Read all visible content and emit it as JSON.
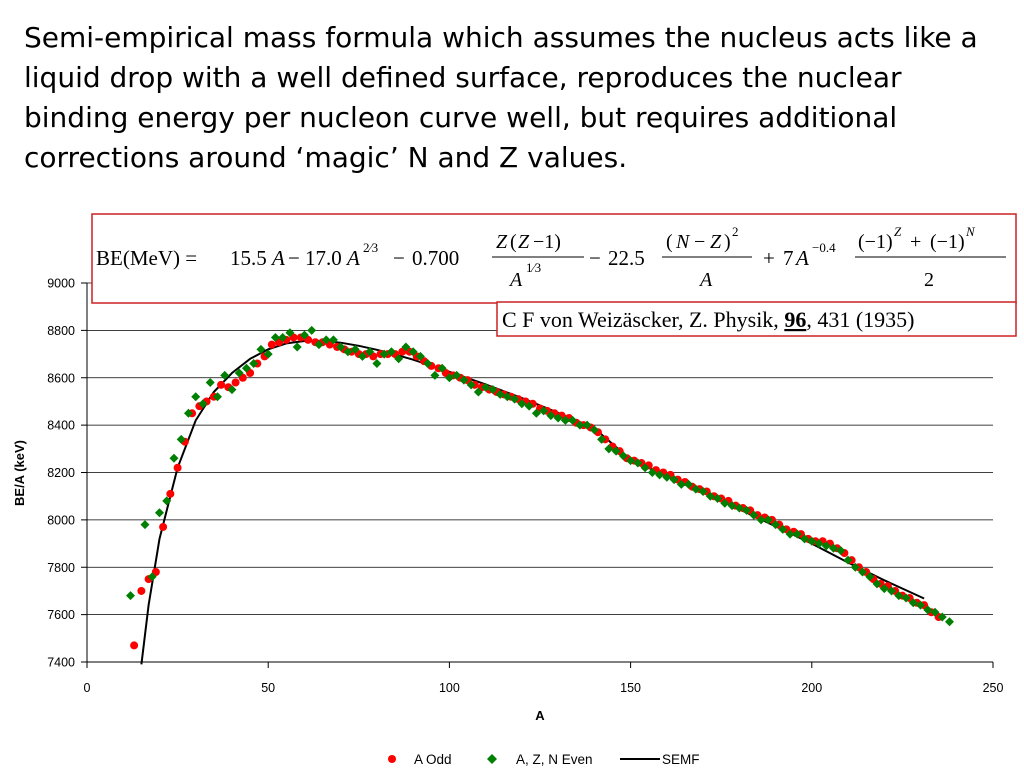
{
  "intro_text": "Semi-empirical mass formula which assumes the nucleus acts like a liquid drop with a well defined surface, reproduces the nuclear binding energy per nucleon curve well, but requires additional corrections around ‘magic’ N and Z values.",
  "formula": {
    "lhs": "BE(MeV) = ",
    "term1": "15.5",
    "term2": "17.0",
    "term3": "0.700",
    "term4": "22.5",
    "term5": "7"
  },
  "reference": {
    "prefix": "C F von Weizäscker, Z. Physik, ",
    "volume": "96",
    "suffix": ", 431 (1935)"
  },
  "colors": {
    "odd": "#ff0000",
    "even": "#008000",
    "semf": "#000000",
    "box_border": "#cc2222"
  },
  "chart_data": {
    "type": "scatter",
    "title": "",
    "xlabel": "A",
    "ylabel": "BE/A (keV)",
    "xlim": [
      0,
      250
    ],
    "ylim": [
      7400,
      9000
    ],
    "x_ticks": [
      0,
      50,
      100,
      150,
      200,
      250
    ],
    "y_ticks": [
      7400,
      7600,
      7800,
      8000,
      8200,
      8400,
      8600,
      8800,
      9000
    ],
    "grid": "horizontal",
    "legend_position": "bottom",
    "series": [
      {
        "name": "A Odd",
        "marker": "circle",
        "color": "#ff0000",
        "points": [
          [
            13,
            7470
          ],
          [
            15,
            7700
          ],
          [
            17,
            7750
          ],
          [
            19,
            7780
          ],
          [
            21,
            7970
          ],
          [
            23,
            8110
          ],
          [
            25,
            8220
          ],
          [
            27,
            8330
          ],
          [
            29,
            8450
          ],
          [
            31,
            8480
          ],
          [
            33,
            8500
          ],
          [
            35,
            8520
          ],
          [
            37,
            8570
          ],
          [
            39,
            8560
          ],
          [
            41,
            8580
          ],
          [
            43,
            8600
          ],
          [
            45,
            8620
          ],
          [
            47,
            8660
          ],
          [
            49,
            8690
          ],
          [
            51,
            8740
          ],
          [
            53,
            8750
          ],
          [
            55,
            8760
          ],
          [
            57,
            8770
          ],
          [
            59,
            8770
          ],
          [
            61,
            8760
          ],
          [
            63,
            8750
          ],
          [
            65,
            8750
          ],
          [
            67,
            8740
          ],
          [
            69,
            8730
          ],
          [
            71,
            8720
          ],
          [
            73,
            8710
          ],
          [
            75,
            8700
          ],
          [
            77,
            8700
          ],
          [
            79,
            8690
          ],
          [
            81,
            8700
          ],
          [
            83,
            8700
          ],
          [
            85,
            8700
          ],
          [
            87,
            8710
          ],
          [
            89,
            8710
          ],
          [
            91,
            8690
          ],
          [
            93,
            8670
          ],
          [
            95,
            8650
          ],
          [
            97,
            8640
          ],
          [
            99,
            8620
          ],
          [
            101,
            8610
          ],
          [
            103,
            8600
          ],
          [
            105,
            8590
          ],
          [
            107,
            8570
          ],
          [
            109,
            8560
          ],
          [
            111,
            8550
          ],
          [
            113,
            8540
          ],
          [
            115,
            8530
          ],
          [
            117,
            8520
          ],
          [
            119,
            8510
          ],
          [
            121,
            8500
          ],
          [
            123,
            8490
          ],
          [
            125,
            8470
          ],
          [
            127,
            8460
          ],
          [
            129,
            8450
          ],
          [
            131,
            8440
          ],
          [
            133,
            8430
          ],
          [
            135,
            8410
          ],
          [
            137,
            8400
          ],
          [
            139,
            8390
          ],
          [
            141,
            8370
          ],
          [
            143,
            8340
          ],
          [
            145,
            8310
          ],
          [
            147,
            8290
          ],
          [
            149,
            8260
          ],
          [
            151,
            8250
          ],
          [
            153,
            8240
          ],
          [
            155,
            8230
          ],
          [
            157,
            8210
          ],
          [
            159,
            8200
          ],
          [
            161,
            8190
          ],
          [
            163,
            8170
          ],
          [
            165,
            8160
          ],
          [
            167,
            8140
          ],
          [
            169,
            8130
          ],
          [
            171,
            8120
          ],
          [
            173,
            8100
          ],
          [
            175,
            8090
          ],
          [
            177,
            8080
          ],
          [
            179,
            8060
          ],
          [
            181,
            8050
          ],
          [
            183,
            8040
          ],
          [
            185,
            8020
          ],
          [
            187,
            8010
          ],
          [
            189,
            8000
          ],
          [
            191,
            7980
          ],
          [
            193,
            7960
          ],
          [
            195,
            7950
          ],
          [
            197,
            7940
          ],
          [
            199,
            7920
          ],
          [
            201,
            7910
          ],
          [
            203,
            7910
          ],
          [
            205,
            7900
          ],
          [
            207,
            7880
          ],
          [
            209,
            7860
          ],
          [
            211,
            7830
          ],
          [
            213,
            7800
          ],
          [
            215,
            7780
          ],
          [
            217,
            7750
          ],
          [
            219,
            7730
          ],
          [
            221,
            7720
          ],
          [
            223,
            7700
          ],
          [
            225,
            7680
          ],
          [
            227,
            7670
          ],
          [
            229,
            7650
          ],
          [
            231,
            7640
          ],
          [
            233,
            7610
          ],
          [
            235,
            7590
          ]
        ]
      },
      {
        "name": "A, Z, N Even",
        "marker": "diamond",
        "color": "#008000",
        "points": [
          [
            12,
            7680
          ],
          [
            16,
            7980
          ],
          [
            18,
            7760
          ],
          [
            20,
            8030
          ],
          [
            22,
            8080
          ],
          [
            24,
            8260
          ],
          [
            26,
            8340
          ],
          [
            28,
            8450
          ],
          [
            30,
            8520
          ],
          [
            32,
            8490
          ],
          [
            34,
            8580
          ],
          [
            36,
            8520
          ],
          [
            38,
            8610
          ],
          [
            40,
            8550
          ],
          [
            42,
            8620
          ],
          [
            44,
            8640
          ],
          [
            46,
            8660
          ],
          [
            48,
            8720
          ],
          [
            50,
            8700
          ],
          [
            52,
            8770
          ],
          [
            54,
            8770
          ],
          [
            56,
            8790
          ],
          [
            58,
            8730
          ],
          [
            60,
            8780
          ],
          [
            62,
            8800
          ],
          [
            64,
            8740
          ],
          [
            66,
            8760
          ],
          [
            68,
            8760
          ],
          [
            70,
            8730
          ],
          [
            72,
            8710
          ],
          [
            74,
            8720
          ],
          [
            76,
            8690
          ],
          [
            78,
            8710
          ],
          [
            80,
            8660
          ],
          [
            82,
            8700
          ],
          [
            84,
            8710
          ],
          [
            86,
            8680
          ],
          [
            88,
            8730
          ],
          [
            90,
            8710
          ],
          [
            92,
            8690
          ],
          [
            94,
            8660
          ],
          [
            96,
            8610
          ],
          [
            98,
            8640
          ],
          [
            100,
            8600
          ],
          [
            102,
            8610
          ],
          [
            104,
            8590
          ],
          [
            106,
            8570
          ],
          [
            108,
            8540
          ],
          [
            110,
            8560
          ],
          [
            112,
            8550
          ],
          [
            114,
            8530
          ],
          [
            116,
            8520
          ],
          [
            118,
            8510
          ],
          [
            120,
            8490
          ],
          [
            122,
            8480
          ],
          [
            124,
            8450
          ],
          [
            126,
            8460
          ],
          [
            128,
            8440
          ],
          [
            130,
            8430
          ],
          [
            132,
            8420
          ],
          [
            134,
            8420
          ],
          [
            136,
            8400
          ],
          [
            138,
            8400
          ],
          [
            140,
            8380
          ],
          [
            142,
            8340
          ],
          [
            144,
            8300
          ],
          [
            146,
            8290
          ],
          [
            148,
            8270
          ],
          [
            150,
            8250
          ],
          [
            152,
            8240
          ],
          [
            154,
            8220
          ],
          [
            156,
            8200
          ],
          [
            158,
            8190
          ],
          [
            160,
            8180
          ],
          [
            162,
            8170
          ],
          [
            164,
            8150
          ],
          [
            166,
            8150
          ],
          [
            168,
            8130
          ],
          [
            170,
            8120
          ],
          [
            172,
            8100
          ],
          [
            174,
            8090
          ],
          [
            176,
            8070
          ],
          [
            178,
            8060
          ],
          [
            180,
            8050
          ],
          [
            182,
            8040
          ],
          [
            184,
            8020
          ],
          [
            186,
            8000
          ],
          [
            188,
            8000
          ],
          [
            190,
            7980
          ],
          [
            192,
            7960
          ],
          [
            194,
            7940
          ],
          [
            196,
            7940
          ],
          [
            198,
            7920
          ],
          [
            200,
            7910
          ],
          [
            202,
            7900
          ],
          [
            204,
            7890
          ],
          [
            206,
            7880
          ],
          [
            208,
            7870
          ],
          [
            210,
            7830
          ],
          [
            212,
            7800
          ],
          [
            214,
            7780
          ],
          [
            216,
            7760
          ],
          [
            218,
            7730
          ],
          [
            220,
            7710
          ],
          [
            222,
            7700
          ],
          [
            224,
            7680
          ],
          [
            226,
            7670
          ],
          [
            228,
            7650
          ],
          [
            230,
            7640
          ],
          [
            232,
            7620
          ],
          [
            234,
            7610
          ],
          [
            236,
            7590
          ],
          [
            238,
            7570
          ]
        ]
      },
      {
        "name": "SEMF",
        "marker": "line",
        "color": "#000000",
        "points": [
          [
            15,
            7390
          ],
          [
            17,
            7640
          ],
          [
            20,
            7920
          ],
          [
            25,
            8220
          ],
          [
            30,
            8420
          ],
          [
            35,
            8540
          ],
          [
            40,
            8620
          ],
          [
            45,
            8680
          ],
          [
            50,
            8720
          ],
          [
            55,
            8745
          ],
          [
            60,
            8755
          ],
          [
            65,
            8755
          ],
          [
            70,
            8748
          ],
          [
            75,
            8735
          ],
          [
            80,
            8718
          ],
          [
            85,
            8698
          ],
          [
            90,
            8676
          ],
          [
            95,
            8651
          ],
          [
            100,
            8625
          ],
          [
            110,
            8572
          ],
          [
            120,
            8514
          ],
          [
            130,
            8452
          ],
          [
            140,
            8386
          ],
          [
            150,
            8255
          ],
          [
            160,
            8185
          ],
          [
            170,
            8115
          ],
          [
            180,
            8045
          ],
          [
            190,
            7973
          ],
          [
            200,
            7900
          ],
          [
            210,
            7820
          ],
          [
            220,
            7745
          ],
          [
            231,
            7668
          ]
        ]
      }
    ]
  }
}
